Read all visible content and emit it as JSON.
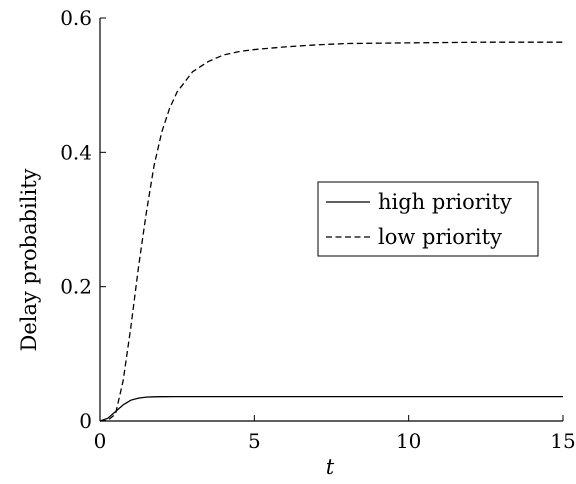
{
  "chart_data": {
    "type": "line",
    "title": "",
    "xlabel": "t",
    "ylabel": "Delay probability",
    "xlim": [
      0,
      15
    ],
    "ylim": [
      0,
      0.6
    ],
    "xticks": [
      0,
      5,
      10,
      15
    ],
    "yticks": [
      0,
      0.2,
      0.4,
      0.6
    ],
    "xtick_labels": [
      "0",
      "5",
      "10",
      "15"
    ],
    "ytick_labels": [
      "0",
      "0.2",
      "0.4",
      "0.6"
    ],
    "grid": false,
    "legend_position": "right",
    "series": [
      {
        "name": "high priority",
        "style": "solid",
        "color": "#000000",
        "x": [
          0,
          0.25,
          0.5,
          0.75,
          1.0,
          1.25,
          1.5,
          1.75,
          2.0,
          2.5,
          3.0,
          4.0,
          5.0,
          7.5,
          10.0,
          12.5,
          15.0
        ],
        "y": [
          0,
          0.004,
          0.014,
          0.024,
          0.031,
          0.034,
          0.0355,
          0.036,
          0.0362,
          0.0363,
          0.0363,
          0.0363,
          0.0363,
          0.0363,
          0.0363,
          0.0363,
          0.0363
        ]
      },
      {
        "name": "low priority",
        "style": "dashed",
        "color": "#000000",
        "x": [
          0,
          0.25,
          0.5,
          0.75,
          1.0,
          1.25,
          1.5,
          1.75,
          2.0,
          2.25,
          2.5,
          3.0,
          3.5,
          4.0,
          4.5,
          5.0,
          6.0,
          7.0,
          8.0,
          10.0,
          12.5,
          15.0
        ],
        "y": [
          0,
          0.001,
          0.01,
          0.06,
          0.14,
          0.23,
          0.31,
          0.38,
          0.43,
          0.465,
          0.49,
          0.52,
          0.535,
          0.545,
          0.55,
          0.553,
          0.557,
          0.56,
          0.562,
          0.563,
          0.564,
          0.564
        ]
      }
    ]
  }
}
